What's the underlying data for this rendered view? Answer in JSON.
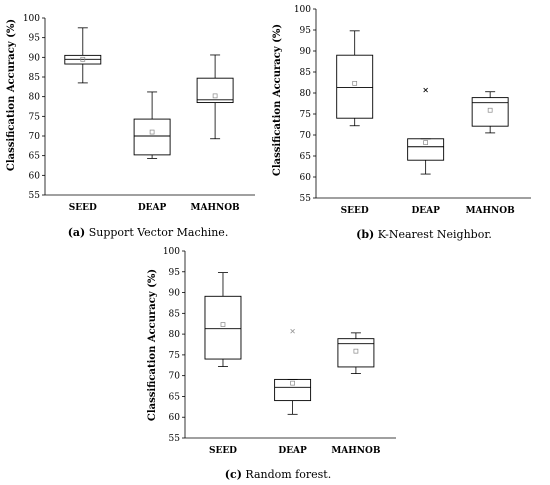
{
  "chart_data": [
    {
      "type": "box",
      "ylabel": "Classification Accuracy (%)",
      "ylim": [
        55,
        100
      ],
      "yticks": [
        55,
        60,
        65,
        70,
        75,
        80,
        85,
        90,
        95,
        100
      ],
      "categories": [
        "SEED",
        "DEAP",
        "MAHNOB"
      ],
      "boxes": [
        {
          "min": 83.5,
          "q1": 88.3,
          "median": 89.5,
          "q3": 90.5,
          "max": 97.5,
          "mean": 89.5,
          "outliers": []
        },
        {
          "min": 64.3,
          "q1": 65.2,
          "median": 70.0,
          "q3": 74.3,
          "max": 81.2,
          "mean": 71.0,
          "outliers": []
        },
        {
          "min": 69.3,
          "q1": 78.5,
          "median": 79.2,
          "q3": 84.7,
          "max": 90.6,
          "mean": 80.2,
          "outliers": []
        }
      ],
      "caption_prefix": "(a)",
      "caption_text": " Support Vector Machine."
    },
    {
      "type": "box",
      "ylabel": "Classification Accuracy (%)",
      "ylim": [
        55,
        100
      ],
      "yticks": [
        55,
        60,
        65,
        70,
        75,
        80,
        85,
        90,
        95,
        100
      ],
      "categories": [
        "SEED",
        "DEAP",
        "MAHNOB"
      ],
      "boxes": [
        {
          "min": 72.2,
          "q1": 74.0,
          "median": 81.3,
          "q3": 89.0,
          "max": 94.8,
          "mean": 82.3,
          "outliers": []
        },
        {
          "min": 60.7,
          "q1": 64.0,
          "median": 67.2,
          "q3": 69.1,
          "max": 69.1,
          "mean": 68.2,
          "outliers": [
            80.7
          ]
        },
        {
          "min": 70.5,
          "q1": 72.1,
          "median": 77.7,
          "q3": 78.9,
          "max": 80.3,
          "mean": 75.9,
          "outliers": []
        }
      ],
      "caption_prefix": "(b)",
      "caption_text": " K-Nearest Neighbor."
    },
    {
      "type": "box",
      "ylabel": "Classification Accuracy (%)",
      "ylim": [
        55,
        100
      ],
      "yticks": [
        55,
        60,
        65,
        70,
        75,
        80,
        85,
        90,
        95,
        100
      ],
      "categories": [
        "SEED",
        "DEAP",
        "MAHNOB"
      ],
      "boxes": [
        {
          "min": 72.2,
          "q1": 74.0,
          "median": 81.3,
          "q3": 89.1,
          "max": 94.8,
          "mean": 82.3,
          "outliers": []
        },
        {
          "min": 60.7,
          "q1": 64.0,
          "median": 67.2,
          "q3": 69.1,
          "max": 69.1,
          "mean": 68.2,
          "outliers": [
            80.7
          ]
        },
        {
          "min": 70.5,
          "q1": 72.1,
          "median": 77.7,
          "q3": 78.9,
          "max": 80.3,
          "mean": 75.9,
          "outliers": []
        }
      ],
      "caption_prefix": "(c)",
      "caption_text": " Random forest."
    }
  ]
}
